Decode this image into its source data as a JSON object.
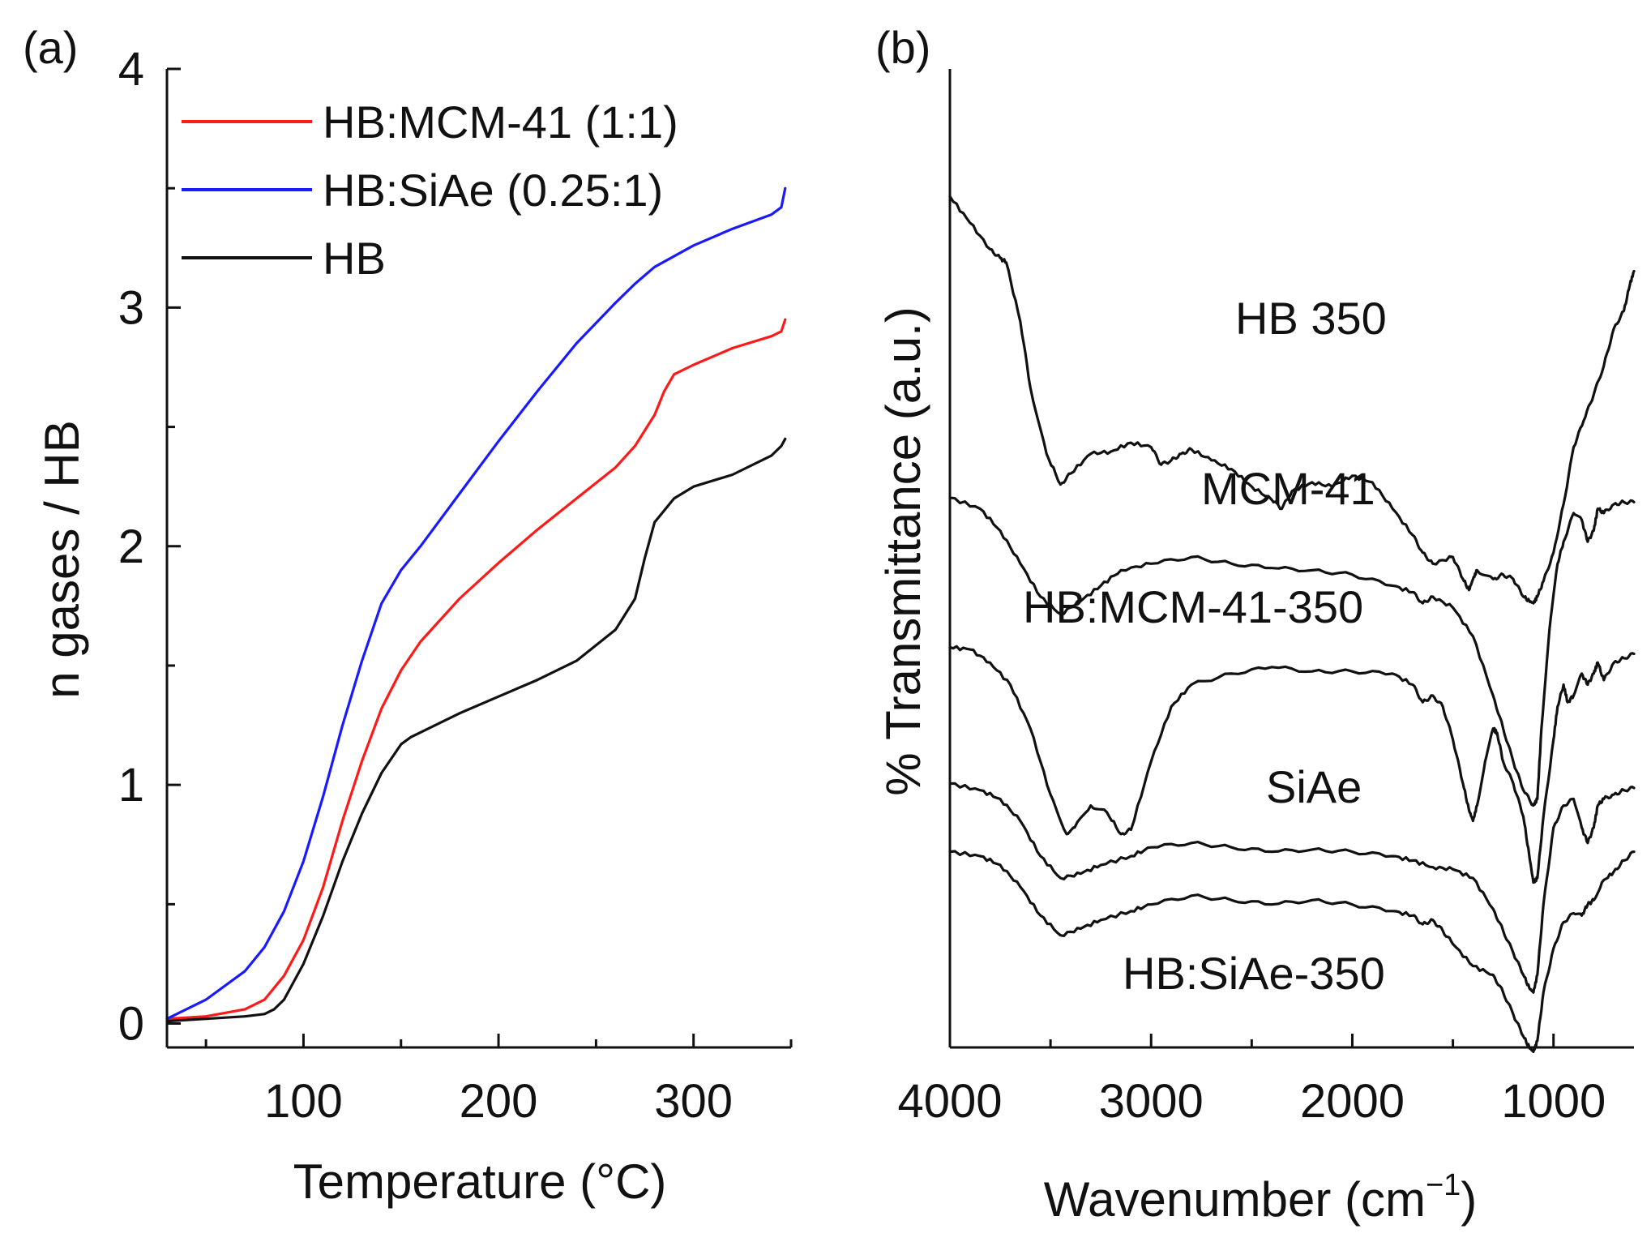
{
  "chart_data": [
    {
      "type": "line",
      "panel_label": "(a)",
      "xlabel": "Temperature (°C)",
      "ylabel": "n gases / HB",
      "xlim": [
        30,
        350
      ],
      "ylim": [
        -0.1,
        4
      ],
      "xticks": [
        100,
        200,
        300
      ],
      "xtick_labels": [
        "100",
        "200",
        "300"
      ],
      "yticks": [
        0,
        1,
        2,
        3,
        4
      ],
      "ytick_labels": [
        "0",
        "1",
        "2",
        "3",
        "4"
      ],
      "grid": false,
      "legend_position": "top-left",
      "series": [
        {
          "name": "HB:MCM-41 (1:1)",
          "color": "#ff1a1a",
          "x": [
            30,
            50,
            70,
            80,
            90,
            100,
            110,
            120,
            130,
            140,
            150,
            160,
            180,
            200,
            220,
            240,
            260,
            270,
            280,
            285,
            290,
            300,
            320,
            340,
            345,
            347
          ],
          "y": [
            0.02,
            0.03,
            0.06,
            0.1,
            0.2,
            0.35,
            0.57,
            0.85,
            1.1,
            1.32,
            1.48,
            1.6,
            1.78,
            1.93,
            2.07,
            2.2,
            2.33,
            2.42,
            2.55,
            2.65,
            2.72,
            2.76,
            2.83,
            2.88,
            2.9,
            2.95
          ]
        },
        {
          "name": "HB:SiAe (0.25:1)",
          "color": "#1a1aff",
          "x": [
            30,
            50,
            70,
            80,
            90,
            100,
            110,
            120,
            130,
            140,
            150,
            160,
            180,
            200,
            220,
            240,
            260,
            270,
            280,
            300,
            320,
            340,
            345,
            347
          ],
          "y": [
            0.02,
            0.1,
            0.22,
            0.32,
            0.47,
            0.68,
            0.95,
            1.25,
            1.52,
            1.76,
            1.9,
            2.0,
            2.22,
            2.44,
            2.65,
            2.85,
            3.02,
            3.1,
            3.17,
            3.26,
            3.33,
            3.39,
            3.42,
            3.5
          ]
        },
        {
          "name": "HB",
          "color": "#111111",
          "x": [
            30,
            50,
            70,
            80,
            85,
            90,
            100,
            110,
            120,
            130,
            140,
            150,
            155,
            160,
            180,
            200,
            220,
            240,
            260,
            270,
            275,
            280,
            290,
            300,
            320,
            340,
            345,
            347
          ],
          "y": [
            0.01,
            0.02,
            0.03,
            0.04,
            0.06,
            0.1,
            0.25,
            0.45,
            0.68,
            0.88,
            1.05,
            1.17,
            1.2,
            1.22,
            1.3,
            1.37,
            1.44,
            1.52,
            1.65,
            1.78,
            1.95,
            2.1,
            2.2,
            2.25,
            2.3,
            2.38,
            2.42,
            2.45
          ]
        }
      ]
    },
    {
      "type": "line",
      "panel_label": "(b)",
      "xlabel": "Wavenumber (cm",
      "xlabel_superscript": "−1",
      "xlabel_suffix": ")",
      "ylabel": "% Transmittance (a.u.)",
      "xlim": [
        4000,
        600
      ],
      "x_reversed": true,
      "y_units": "arbitrary offset",
      "ylim": [
        -0.15,
        4.3
      ],
      "xticks": [
        4000,
        3000,
        2000,
        1000
      ],
      "xtick_labels": [
        "4000",
        "3000",
        "2000",
        "1000"
      ],
      "minor_xticks": [
        3500,
        2500,
        1500
      ],
      "yticks_shown": false,
      "grid": false,
      "series": [
        {
          "name": "HB 350",
          "color": "#111111",
          "x": [
            4000,
            3900,
            3800,
            3750,
            3720,
            3650,
            3600,
            3520,
            3450,
            3400,
            3300,
            3200,
            3100,
            3000,
            2950,
            2900,
            2850,
            2800,
            2700,
            2600,
            2500,
            2400,
            2350,
            2300,
            2200,
            2100,
            2000,
            1900,
            1800,
            1700,
            1650,
            1600,
            1500,
            1450,
            1420,
            1400,
            1380,
            1300,
            1250,
            1200,
            1150,
            1120,
            1100,
            1080,
            1050,
            1000,
            950,
            900,
            850,
            800,
            750,
            700,
            650,
            620,
            600
          ],
          "y": [
            3.72,
            3.6,
            3.48,
            3.44,
            3.42,
            3.15,
            2.85,
            2.55,
            2.41,
            2.46,
            2.55,
            2.56,
            2.6,
            2.58,
            2.5,
            2.52,
            2.55,
            2.57,
            2.52,
            2.48,
            2.4,
            2.34,
            2.3,
            2.38,
            2.42,
            2.4,
            2.45,
            2.42,
            2.3,
            2.18,
            2.1,
            2.05,
            2.08,
            1.98,
            1.93,
            1.98,
            2.02,
            1.98,
            2.0,
            1.98,
            1.9,
            1.88,
            1.87,
            1.9,
            1.97,
            2.1,
            2.32,
            2.58,
            2.7,
            2.82,
            2.95,
            3.12,
            3.2,
            3.32,
            3.38
          ]
        },
        {
          "name": "MCM-41",
          "color": "#111111",
          "x": [
            4000,
            3850,
            3750,
            3650,
            3550,
            3450,
            3350,
            3250,
            3150,
            3000,
            2800,
            2600,
            2400,
            2200,
            2000,
            1800,
            1700,
            1650,
            1600,
            1500,
            1400,
            1300,
            1250,
            1200,
            1150,
            1100,
            1080,
            1060,
            1020,
            980,
            950,
            900,
            860,
            830,
            800,
            780,
            750,
            700,
            650,
            600
          ],
          "y": [
            2.35,
            2.3,
            2.2,
            2.05,
            1.9,
            1.82,
            1.88,
            1.95,
            2.02,
            2.05,
            2.08,
            2.05,
            2.03,
            2.02,
            2.0,
            1.95,
            1.92,
            1.87,
            1.9,
            1.85,
            1.72,
            1.45,
            1.3,
            1.15,
            1.02,
            0.95,
            0.98,
            1.3,
            1.75,
            2.05,
            2.15,
            2.28,
            2.25,
            2.15,
            2.2,
            2.3,
            2.28,
            2.32,
            2.33,
            2.33
          ]
        },
        {
          "name": "HB:MCM-41-350",
          "color": "#111111",
          "x": [
            4000,
            3900,
            3800,
            3700,
            3600,
            3500,
            3420,
            3380,
            3300,
            3220,
            3150,
            3100,
            3000,
            2900,
            2800,
            2600,
            2400,
            2200,
            2000,
            1800,
            1700,
            1650,
            1600,
            1550,
            1500,
            1450,
            1420,
            1400,
            1380,
            1340,
            1300,
            1280,
            1250,
            1200,
            1150,
            1120,
            1100,
            1080,
            1050,
            1000,
            980,
            950,
            930,
            900,
            860,
            830,
            800,
            780,
            750,
            700,
            650,
            600
          ],
          "y": [
            1.67,
            1.66,
            1.6,
            1.5,
            1.3,
            1.0,
            0.82,
            0.85,
            0.95,
            0.92,
            0.82,
            0.84,
            1.15,
            1.4,
            1.5,
            1.55,
            1.58,
            1.56,
            1.56,
            1.55,
            1.5,
            1.42,
            1.45,
            1.4,
            1.25,
            1.05,
            0.93,
            0.88,
            0.95,
            1.15,
            1.3,
            1.28,
            1.15,
            1.05,
            0.9,
            0.72,
            0.6,
            0.62,
            0.9,
            1.25,
            1.4,
            1.5,
            1.42,
            1.45,
            1.55,
            1.5,
            1.55,
            1.6,
            1.52,
            1.6,
            1.62,
            1.64
          ]
        },
        {
          "name": "SiAe",
          "color": "#111111",
          "x": [
            4000,
            3850,
            3750,
            3650,
            3550,
            3450,
            3350,
            3250,
            3100,
            3000,
            2800,
            2600,
            2400,
            2200,
            2000,
            1800,
            1700,
            1600,
            1500,
            1400,
            1300,
            1250,
            1200,
            1150,
            1120,
            1100,
            1080,
            1050,
            1000,
            950,
            900,
            860,
            830,
            800,
            780,
            750,
            700,
            650,
            600
          ],
          "y": [
            1.05,
            1.02,
            0.98,
            0.88,
            0.72,
            0.62,
            0.64,
            0.68,
            0.72,
            0.76,
            0.78,
            0.76,
            0.74,
            0.75,
            0.74,
            0.72,
            0.7,
            0.67,
            0.66,
            0.62,
            0.48,
            0.38,
            0.28,
            0.18,
            0.12,
            0.1,
            0.18,
            0.5,
            0.85,
            0.95,
            0.98,
            0.85,
            0.78,
            0.85,
            0.95,
            0.98,
            1.0,
            1.02,
            1.03
          ]
        },
        {
          "name": "HB:SiAe-350",
          "color": "#111111",
          "x": [
            4000,
            3850,
            3750,
            3650,
            3550,
            3450,
            3350,
            3250,
            3100,
            3000,
            2800,
            2600,
            2400,
            2200,
            2000,
            1800,
            1700,
            1650,
            1600,
            1550,
            1500,
            1400,
            1300,
            1250,
            1200,
            1150,
            1120,
            1100,
            1080,
            1050,
            1000,
            950,
            900,
            860,
            830,
            800,
            760,
            700,
            650,
            600
          ],
          "y": [
            0.74,
            0.72,
            0.68,
            0.58,
            0.45,
            0.36,
            0.39,
            0.43,
            0.47,
            0.5,
            0.54,
            0.52,
            0.5,
            0.52,
            0.5,
            0.47,
            0.45,
            0.41,
            0.43,
            0.38,
            0.32,
            0.22,
            0.18,
            0.1,
            0.0,
            -0.1,
            -0.15,
            -0.17,
            -0.12,
            0.1,
            0.3,
            0.42,
            0.46,
            0.45,
            0.5,
            0.52,
            0.6,
            0.65,
            0.7,
            0.74
          ]
        }
      ],
      "trace_labels": [
        "HB 350",
        "MCM-41",
        "HB:MCM-41-350",
        "SiAe",
        "HB:SiAe-350"
      ]
    }
  ]
}
